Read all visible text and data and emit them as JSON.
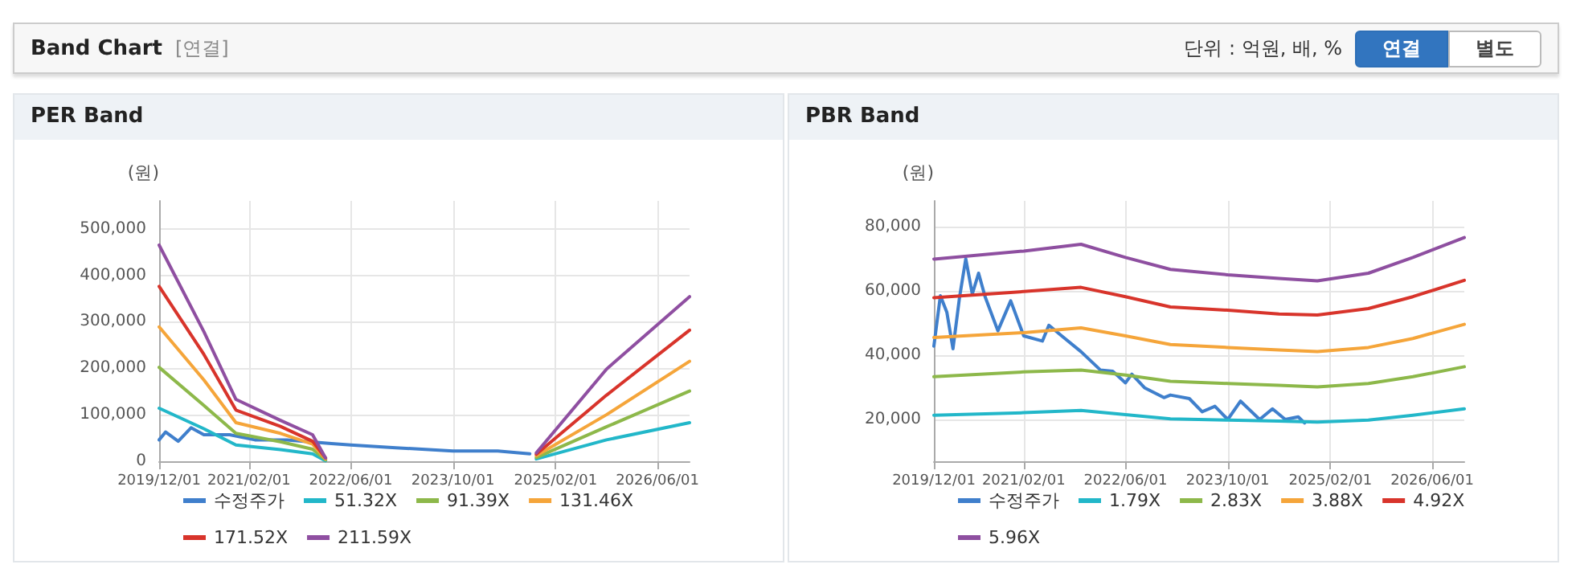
{
  "chart_data": [
    {
      "type": "other",
      "title": "Band Chart",
      "annotations": [
        "[연결]",
        "단위 : 억원, 배, %",
        "연결",
        "별도"
      ]
    },
    {
      "type": "line",
      "title": "PER Band",
      "ylabel": "(원)",
      "legend": "bottom",
      "grid": true,
      "marker": "none",
      "line_style": "solid",
      "xlim": [
        "2019-12-01",
        "2026-11-01"
      ],
      "xticks": [
        {
          "value": "2019-12-01",
          "label": "2019/12/01"
        },
        {
          "value": "2021-02-01",
          "label": "2021/02/01"
        },
        {
          "value": "2022-06-01",
          "label": "2022/06/01"
        },
        {
          "value": "2023-10-01",
          "label": "2023/10/01"
        },
        {
          "value": "2025-02-01",
          "label": "2025/02/01"
        },
        {
          "value": "2026-06-01",
          "label": "2026/06/01"
        }
      ],
      "ylim": [
        0,
        560000
      ],
      "yticks": [
        {
          "value": 0,
          "label": "0"
        },
        {
          "value": 100000,
          "label": "100,000"
        },
        {
          "value": 200000,
          "label": "200,000"
        },
        {
          "value": 300000,
          "label": "300,000"
        },
        {
          "value": 400000,
          "label": "400,000"
        },
        {
          "value": 500000,
          "label": "500,000"
        }
      ],
      "series": [
        {
          "name": "수정주가",
          "color": "#3f7fcc",
          "x": [
            "2019-12-01",
            "2020-01-01",
            "2020-03-01",
            "2020-05-01",
            "2020-07-01",
            "2020-11-01",
            "2021-03-01",
            "2021-08-01",
            "2022-03-01",
            "2022-06-01",
            "2023-01-01",
            "2023-10-01",
            "2024-05-01",
            "2024-10-01"
          ],
          "values": [
            46000,
            63000,
            43000,
            72000,
            57000,
            57000,
            46000,
            46000,
            38000,
            35000,
            29000,
            22000,
            22000,
            16000
          ]
        },
        {
          "name": "51.32X",
          "color": "#22b7c9",
          "x": [
            "2019-12-01",
            "2020-07-01",
            "2020-12-01",
            "2021-07-01",
            "2021-12-01",
            "2022-02-01",
            "2023-06-01",
            "2024-11-01",
            "2025-10-01",
            "2026-11-01"
          ],
          "values": [
            114000,
            70000,
            35000,
            25000,
            16000,
            1000,
            null,
            5000,
            46000,
            83000
          ]
        },
        {
          "name": "91.39X",
          "color": "#8db84a",
          "x": [
            "2019-12-01",
            "2020-07-01",
            "2020-12-01",
            "2021-07-01",
            "2021-12-01",
            "2022-02-01",
            "2023-06-01",
            "2024-11-01",
            "2025-10-01",
            "2026-11-01"
          ],
          "values": [
            202000,
            120000,
            60000,
            42000,
            26000,
            3000,
            null,
            8000,
            74000,
            151000
          ]
        },
        {
          "name": "131.46X",
          "color": "#f5a53a",
          "x": [
            "2019-12-01",
            "2020-07-01",
            "2020-12-01",
            "2021-07-01",
            "2021-12-01",
            "2022-02-01",
            "2023-06-01",
            "2024-11-01",
            "2025-10-01",
            "2026-11-01"
          ],
          "values": [
            289000,
            175000,
            83000,
            60000,
            37000,
            5000,
            null,
            12000,
            100000,
            215000
          ]
        },
        {
          "name": "171.52X",
          "color": "#d8342b",
          "x": [
            "2019-12-01",
            "2020-07-01",
            "2020-12-01",
            "2021-07-01",
            "2021-12-01",
            "2022-02-01",
            "2023-06-01",
            "2024-11-01",
            "2025-10-01",
            "2026-11-01"
          ],
          "values": [
            376000,
            230000,
            110000,
            75000,
            43000,
            7000,
            null,
            15000,
            142000,
            282000
          ]
        },
        {
          "name": "211.59X",
          "color": "#8f4fa1",
          "x": [
            "2019-12-01",
            "2020-07-01",
            "2020-12-01",
            "2021-07-01",
            "2021-12-01",
            "2022-02-01",
            "2023-06-01",
            "2024-11-01",
            "2025-10-01",
            "2026-11-01"
          ],
          "values": [
            465000,
            279000,
            133000,
            88000,
            57000,
            7000,
            null,
            18000,
            198000,
            354000
          ]
        }
      ]
    },
    {
      "type": "line",
      "title": "PBR Band",
      "ylabel": "(원)",
      "legend": "bottom",
      "grid": true,
      "marker": "none",
      "line_style": "solid",
      "xlim": [
        "2019-12-01",
        "2026-11-01"
      ],
      "xticks": [
        {
          "value": "2019-12-01",
          "label": "2019/12/01"
        },
        {
          "value": "2021-02-01",
          "label": "2021/02/01"
        },
        {
          "value": "2022-06-01",
          "label": "2022/06/01"
        },
        {
          "value": "2023-10-01",
          "label": "2023/10/01"
        },
        {
          "value": "2025-02-01",
          "label": "2025/02/01"
        },
        {
          "value": "2026-06-01",
          "label": "2026/06/01"
        }
      ],
      "ylim": [
        7000,
        88000
      ],
      "yticks": [
        {
          "value": 20000,
          "label": "20,000"
        },
        {
          "value": 40000,
          "label": "40,000"
        },
        {
          "value": 60000,
          "label": "60,000"
        },
        {
          "value": 80000,
          "label": "80,000"
        }
      ],
      "series": [
        {
          "name": "수정주가",
          "color": "#3f7fcc",
          "x": [
            "2019-12-01",
            "2020-01-01",
            "2020-02-01",
            "2020-03-01",
            "2020-04-01",
            "2020-05-01",
            "2020-06-01",
            "2020-07-01",
            "2020-08-01",
            "2020-10-01",
            "2020-12-01",
            "2021-02-01",
            "2021-05-01",
            "2021-06-01",
            "2021-08-01",
            "2021-11-01",
            "2022-02-01",
            "2022-04-01",
            "2022-06-01",
            "2022-07-01",
            "2022-09-01",
            "2022-12-01",
            "2023-01-01",
            "2023-04-01",
            "2023-06-01",
            "2023-08-01",
            "2023-10-01",
            "2023-12-01",
            "2024-03-01",
            "2024-05-01",
            "2024-07-01",
            "2024-09-01",
            "2024-10-01"
          ],
          "values": [
            42800,
            58500,
            53300,
            42000,
            57900,
            70000,
            59000,
            65500,
            58200,
            47600,
            56900,
            46000,
            44400,
            49300,
            46000,
            41100,
            35400,
            35000,
            31400,
            34100,
            29800,
            26800,
            27600,
            26500,
            22400,
            24100,
            20000,
            25700,
            20000,
            23300,
            20000,
            20800,
            18900
          ]
        },
        {
          "name": "1.79X",
          "color": "#22b7c9",
          "x": [
            "2019-12-01",
            "2021-02-01",
            "2021-11-01",
            "2022-06-01",
            "2023-01-01",
            "2023-10-01",
            "2024-06-01",
            "2024-12-01",
            "2025-08-01",
            "2026-03-01",
            "2026-11-01"
          ],
          "values": [
            21300,
            22100,
            22800,
            21500,
            20200,
            19800,
            19500,
            19200,
            19800,
            21300,
            23300
          ]
        },
        {
          "name": "2.83X",
          "color": "#8db84a",
          "x": [
            "2019-12-01",
            "2021-02-01",
            "2021-11-01",
            "2022-06-01",
            "2023-01-01",
            "2023-10-01",
            "2024-06-01",
            "2024-12-01",
            "2025-08-01",
            "2026-03-01",
            "2026-11-01"
          ],
          "values": [
            33300,
            34800,
            35400,
            33800,
            31900,
            31200,
            30600,
            30100,
            31200,
            33300,
            36400
          ]
        },
        {
          "name": "3.88X",
          "color": "#f5a53a",
          "x": [
            "2019-12-01",
            "2021-02-01",
            "2021-11-01",
            "2022-06-01",
            "2023-01-01",
            "2023-10-01",
            "2024-06-01",
            "2024-12-01",
            "2025-08-01",
            "2026-03-01",
            "2026-11-01"
          ],
          "values": [
            45500,
            47000,
            48500,
            46000,
            43300,
            42400,
            41600,
            41100,
            42400,
            45200,
            49600
          ]
        },
        {
          "name": "4.92X",
          "color": "#d8342b",
          "x": [
            "2019-12-01",
            "2021-02-01",
            "2021-11-01",
            "2022-06-01",
            "2023-01-01",
            "2023-10-01",
            "2024-06-01",
            "2024-12-01",
            "2025-08-01",
            "2026-03-01",
            "2026-11-01"
          ],
          "values": [
            57900,
            59800,
            61100,
            58200,
            55000,
            54000,
            52800,
            52500,
            54500,
            58200,
            63300
          ]
        },
        {
          "name": "5.96X",
          "color": "#8e4fa0",
          "x": [
            "2019-12-01",
            "2021-02-01",
            "2021-11-01",
            "2022-06-01",
            "2023-01-01",
            "2023-10-01",
            "2024-06-01",
            "2024-12-01",
            "2025-08-01",
            "2026-03-01",
            "2026-11-01"
          ],
          "values": [
            69900,
            72400,
            74500,
            70400,
            66700,
            65000,
            63900,
            63100,
            65500,
            70400,
            76600
          ]
        }
      ]
    }
  ]
}
